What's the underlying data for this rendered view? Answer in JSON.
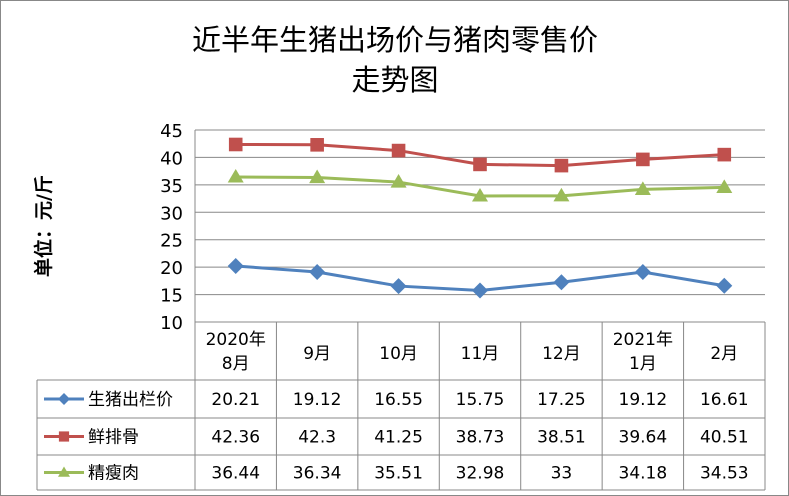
{
  "chart_data": {
    "type": "line",
    "title_lines": [
      "近半年生猪出场价与猪肉零售价",
      "走势图"
    ],
    "ylabel": "单位：元/斤",
    "xlabel": "",
    "ylim": [
      10,
      45
    ],
    "yticks": [
      10,
      15,
      20,
      25,
      30,
      35,
      40,
      45
    ],
    "grid": true,
    "legend": "data-table-left",
    "categories": [
      [
        "2020年",
        "8月"
      ],
      [
        "9月"
      ],
      [
        "10月"
      ],
      [
        "11月"
      ],
      [
        "12月"
      ],
      [
        "2021年",
        "1月"
      ],
      [
        "2月"
      ]
    ],
    "series": [
      {
        "name": "生猪出栏价",
        "color": "#4F81BD",
        "marker": "diamond",
        "values": [
          20.21,
          19.12,
          16.55,
          15.75,
          17.25,
          19.12,
          16.61
        ],
        "labels": [
          "20.21",
          "19.12",
          "16.55",
          "15.75",
          "17.25",
          "19.12",
          "16.61"
        ]
      },
      {
        "name": "鲜排骨",
        "color": "#C0504D",
        "marker": "square",
        "values": [
          42.36,
          42.3,
          41.25,
          38.73,
          38.51,
          39.64,
          40.51
        ],
        "labels": [
          "42.36",
          "42.3",
          "41.25",
          "38.73",
          "38.51",
          "39.64",
          "40.51"
        ]
      },
      {
        "name": "精瘦肉",
        "color": "#9BBB59",
        "marker": "triangle",
        "values": [
          36.44,
          36.34,
          35.51,
          32.98,
          33,
          34.18,
          34.53
        ],
        "labels": [
          "36.44",
          "36.34",
          "35.51",
          "32.98",
          "33",
          "34.18",
          "34.53"
        ]
      }
    ]
  }
}
